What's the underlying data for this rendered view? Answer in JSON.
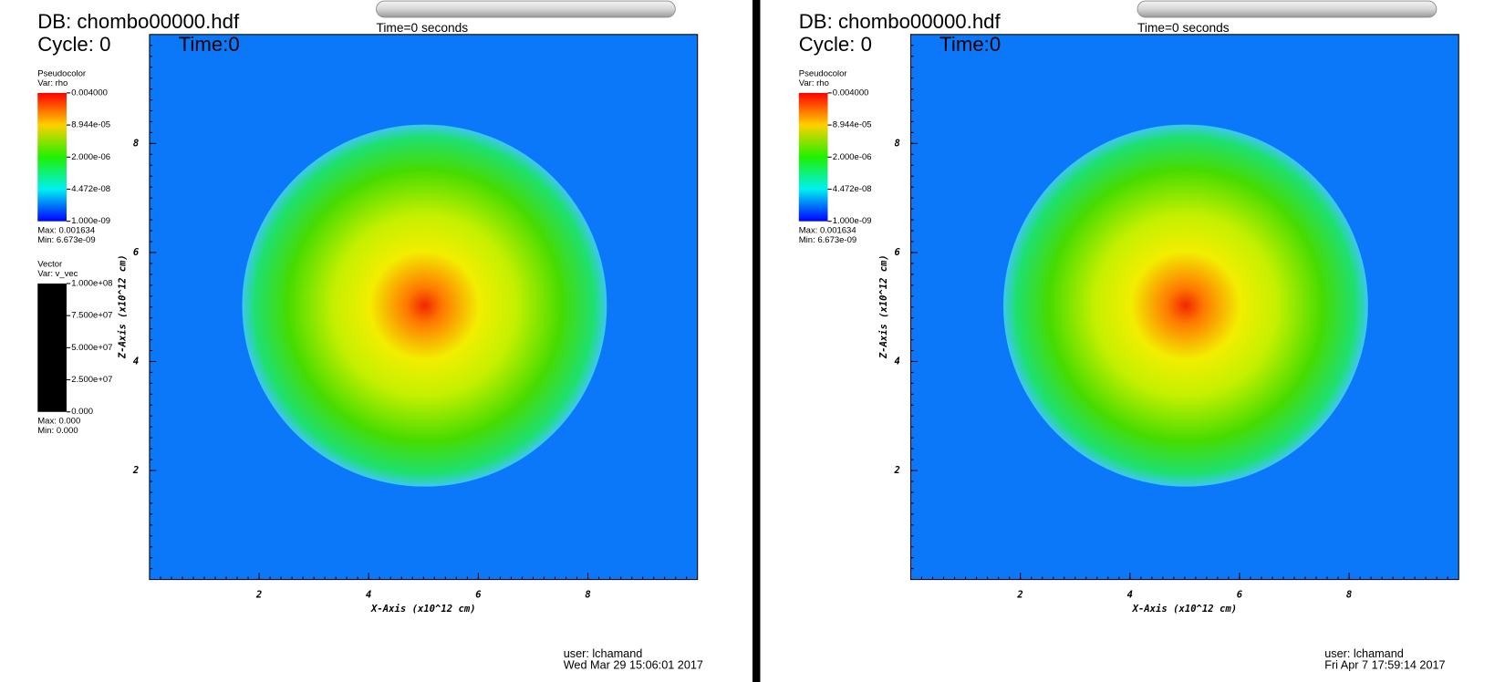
{
  "panels": [
    {
      "db": "DB: chombo00000.hdf",
      "cycle": "Cycle: 0",
      "time": "Time:0",
      "slider_label": "Time=0 seconds",
      "legends": [
        {
          "title": "Pseudocolor",
          "var": "Var: rho",
          "labels": [
            "0.004000",
            "8.944e-05",
            "2.000e-06",
            "4.472e-08",
            "1.000e-09"
          ],
          "max": "Max:  0.001634",
          "min": "Min:  6.673e-09"
        },
        {
          "title": "Vector",
          "var": "Var: v_vec",
          "labels": [
            "1.000e+08",
            "7.500e+07",
            "5.000e+07",
            "2.500e+07",
            "0.000"
          ],
          "max": "Max:  0.000",
          "min": "Min:  0.000"
        }
      ],
      "x_label": "X-Axis (x10^12 cm)",
      "y_label": "Z-Axis (x10^12 cm)",
      "xlim": [
        0,
        10
      ],
      "ylim": [
        0,
        10
      ],
      "xticks": [
        2,
        4,
        6,
        8
      ],
      "yticks": [
        2,
        4,
        6,
        8
      ],
      "user": "user: lchamand",
      "date": "Wed Mar 29 15:06:01 2017"
    },
    {
      "db": "DB: chombo00000.hdf",
      "cycle": "Cycle: 0",
      "time": "Time:0",
      "slider_label": "Time=0 seconds",
      "legends": [
        {
          "title": "Pseudocolor",
          "var": "Var: rho",
          "labels": [
            "0.004000",
            "8.944e-05",
            "2.000e-06",
            "4.472e-08",
            "1.000e-09"
          ],
          "max": "Max:  0.001634",
          "min": "Min:  6.673e-09"
        }
      ],
      "x_label": "X-Axis (x10^12 cm)",
      "y_label": "Z-Axis (x10^12 cm)",
      "xlim": [
        0,
        10
      ],
      "ylim": [
        0,
        10
      ],
      "xticks": [
        2,
        4,
        6,
        8
      ],
      "yticks": [
        2,
        4,
        6,
        8
      ],
      "user": "user: lchamand",
      "date": "Fri Apr  7 17:59:14 2017"
    }
  ]
}
